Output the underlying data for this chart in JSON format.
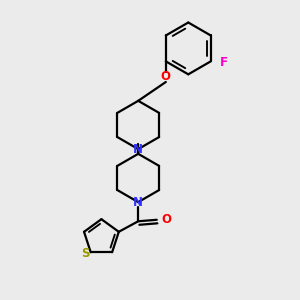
{
  "background_color": "#ebebeb",
  "line_color": "#000000",
  "N_color": "#3333ff",
  "O_color": "#ff0000",
  "F_color": "#ff00cc",
  "S_color": "#999900",
  "line_width": 1.6,
  "figsize": [
    3.0,
    3.0
  ],
  "dpi": 100,
  "xlim": [
    0,
    10
  ],
  "ylim": [
    0,
    10
  ],
  "font_size": 8.5
}
